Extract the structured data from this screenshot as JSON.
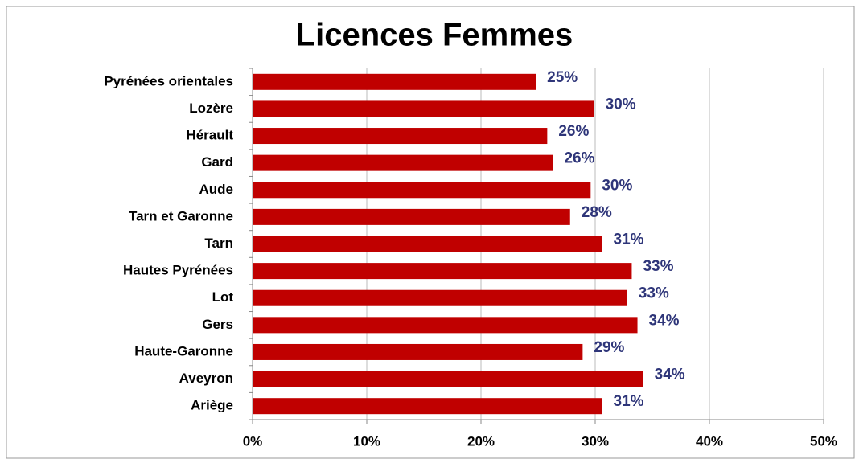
{
  "chart_data": {
    "type": "hbar",
    "title": "Licences Femmes",
    "categories": [
      "Pyrénées orientales",
      "Lozère",
      "Hérault",
      "Gard",
      "Aude",
      "Tarn et Garonne",
      "Tarn",
      "Hautes Pyrénées",
      "Lot",
      "Gers",
      "Haute-Garonne",
      "Aveyron",
      "Ariège"
    ],
    "values": [
      24.8,
      29.9,
      25.8,
      26.3,
      29.6,
      27.8,
      30.6,
      33.2,
      32.8,
      33.7,
      28.9,
      34.2,
      30.6
    ],
    "value_labels": [
      "25%",
      "30%",
      "26%",
      "26%",
      "30%",
      "28%",
      "31%",
      "33%",
      "33%",
      "34%",
      "29%",
      "34%",
      "31%"
    ],
    "color": "#c00000",
    "xlim": [
      0,
      50
    ],
    "xticks": [
      {
        "value": 0,
        "label": "0%"
      },
      {
        "value": 10,
        "label": "10%"
      },
      {
        "value": 20,
        "label": "20%"
      },
      {
        "value": 30,
        "label": "30%"
      },
      {
        "value": 40,
        "label": "40%"
      },
      {
        "value": 50,
        "label": "50%"
      }
    ],
    "grid": true
  }
}
